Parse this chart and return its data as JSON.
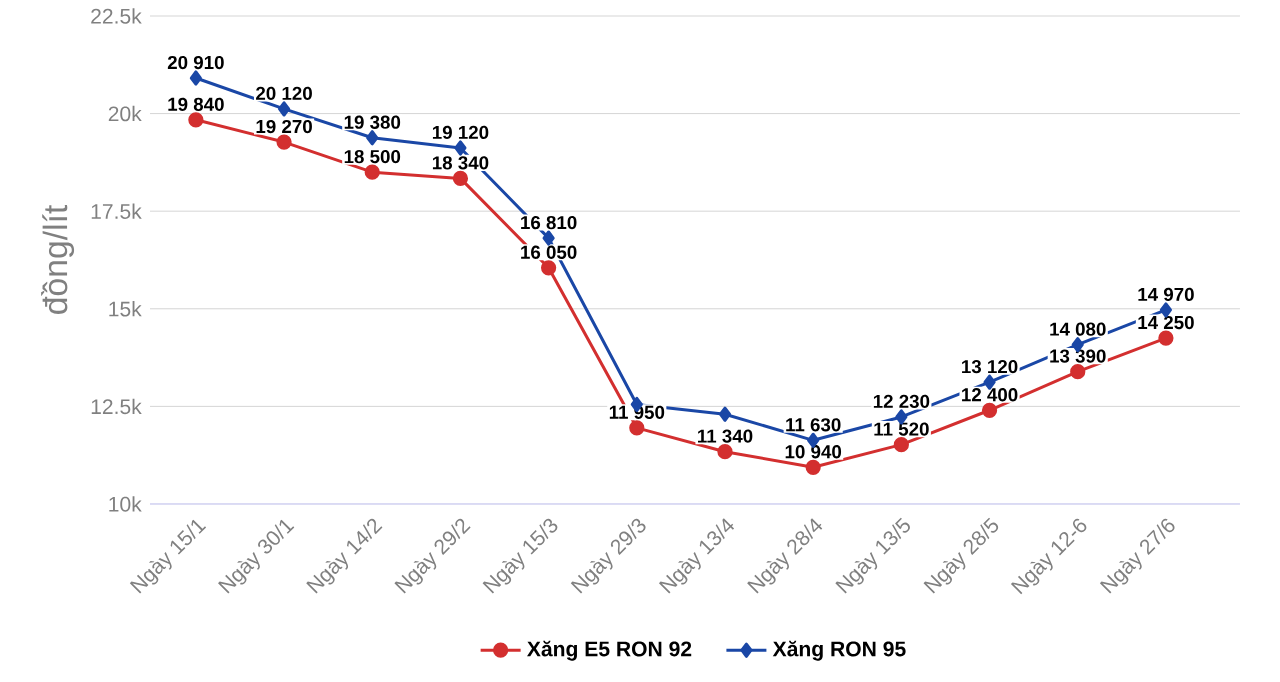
{
  "chart_data": {
    "type": "line",
    "ylabel": "đồng/lít",
    "categories": [
      "Ngày 15/1",
      "Ngày 30/1",
      "Ngày 14/2",
      "Ngày 29/2",
      "Ngày 15/3",
      "Ngày 29/3",
      "Ngày 13/4",
      "Ngày 28/4",
      "Ngày 13/5",
      "Ngày 28/5",
      "Ngày 12-6",
      "Ngày 27/6"
    ],
    "series": [
      {
        "name": "Xăng E5 RON 92",
        "color": "#d32f2f",
        "marker": "circle",
        "values": [
          19840,
          19270,
          18500,
          18340,
          16050,
          11950,
          11340,
          10940,
          11520,
          12400,
          13390,
          14250
        ],
        "value_labels": [
          "19 840",
          "19 270",
          "18 500",
          "18 340",
          "16 050",
          "11 950",
          "11 340",
          "10 940",
          "11 520",
          "12 400",
          "13 390",
          "14 250"
        ]
      },
      {
        "name": "Xăng RON 95",
        "color": "#1a47a6",
        "marker": "diamond",
        "values": [
          20910,
          20120,
          19380,
          19120,
          16810,
          12550,
          12300,
          11630,
          12230,
          13120,
          14080,
          14970
        ],
        "value_labels": [
          "20 910",
          "20 120",
          "19 380",
          "19 120",
          "16 810",
          null,
          null,
          "11 630",
          "12 230",
          "13 120",
          "14 080",
          "14 970"
        ]
      }
    ],
    "ylim": [
      10000,
      22500
    ],
    "yticks": [
      {
        "value": 10000,
        "label": "10k"
      },
      {
        "value": 12500,
        "label": "12.5k"
      },
      {
        "value": 15000,
        "label": "15k"
      },
      {
        "value": 17500,
        "label": "17.5k"
      },
      {
        "value": 20000,
        "label": "20k"
      },
      {
        "value": 22500,
        "label": "22.5k"
      }
    ],
    "grid": "y",
    "legend": "bottom"
  }
}
